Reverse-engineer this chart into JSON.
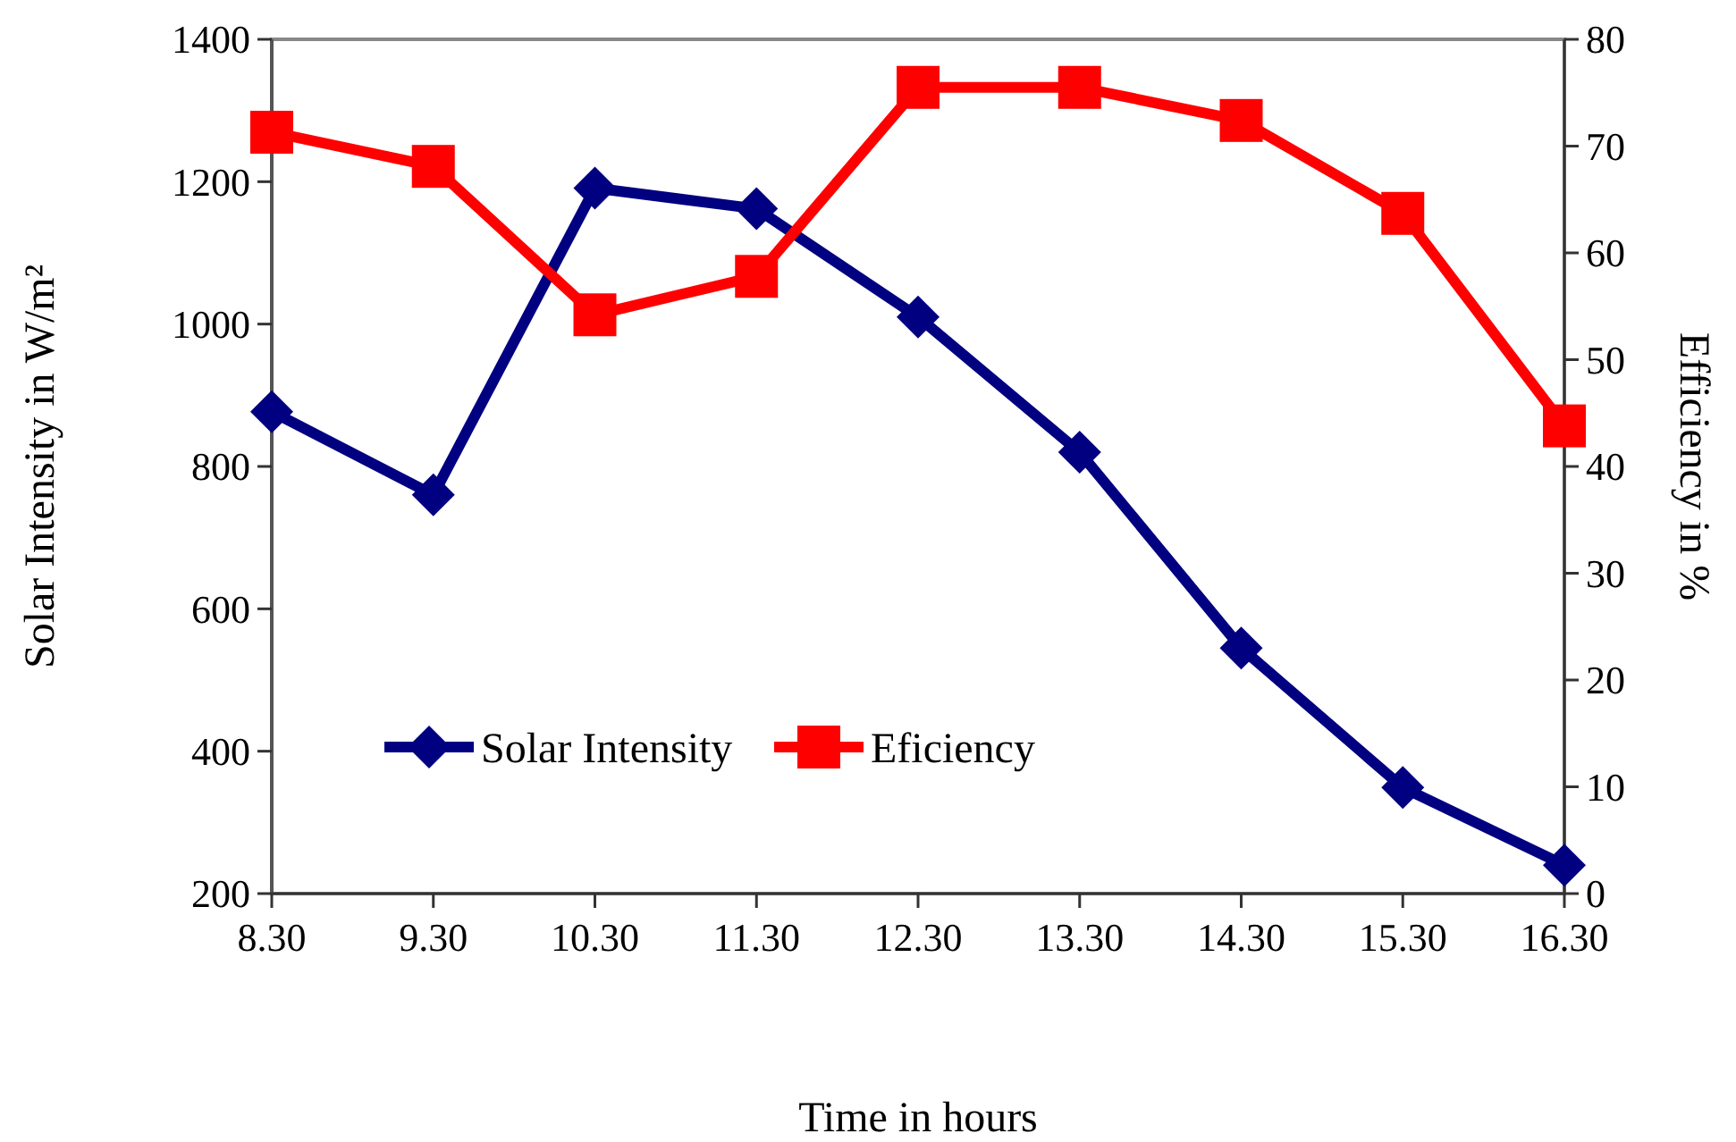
{
  "chart_data": {
    "type": "line",
    "xlabel": "Time in hours",
    "ylabel": "Solar Intensity in W/m²",
    "y2label": "Efficiency in %",
    "categories": [
      "8.30",
      "9.30",
      "10.30",
      "11.30",
      "12.30",
      "13.30",
      "14.30",
      "15.30",
      "16.30"
    ],
    "series": [
      {
        "name": "Solar Intensity",
        "color": "#000080",
        "marker": "diamond",
        "values": [
          877,
          760,
          1191,
          1162,
          1010,
          820,
          545,
          349,
          240
        ]
      },
      {
        "name": "Eficiency",
        "color": "#ff0000",
        "marker": "square",
        "axis": "y2",
        "values": [
          71.3,
          68.1,
          54.2,
          57.8,
          75.5,
          75.5,
          72.4,
          63.7,
          43.8
        ]
      }
    ],
    "ylim": [
      200,
      1400
    ],
    "yticks": [
      200,
      400,
      600,
      800,
      1000,
      1200,
      1400
    ],
    "y2lim": [
      0,
      80
    ],
    "y2ticks": [
      0,
      10,
      20,
      30,
      40,
      50,
      60,
      70,
      80
    ],
    "legend": "bottom left",
    "grid": false
  }
}
